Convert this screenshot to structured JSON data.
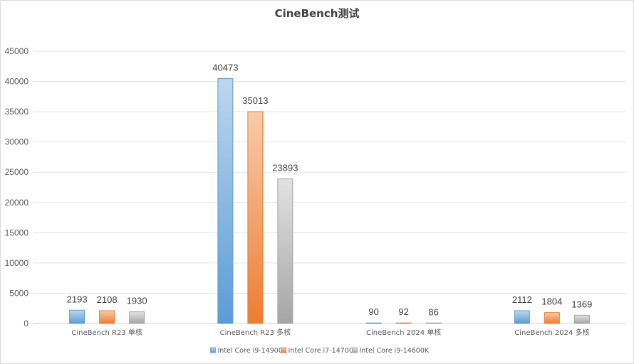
{
  "chart_data": {
    "type": "bar",
    "title": "CineBench测试",
    "xlabel": "",
    "ylabel": "",
    "categories": [
      "CineBench R23 单核",
      "CineBench R23 多核",
      "CineBench 2024 单核",
      "CineBench 2024 多核"
    ],
    "series": [
      {
        "name": "Intel Core i9-14900K",
        "color": "#5B9BD5",
        "values": [
          2193,
          40473,
          90,
          2112
        ]
      },
      {
        "name": "Intel Core i7-14700K",
        "color": "#ED7D31",
        "values": [
          2108,
          35013,
          92,
          1804
        ]
      },
      {
        "name": "Intel Core i9-14600K",
        "color": "#A5A5A5",
        "values": [
          1930,
          23893,
          86,
          1369
        ]
      }
    ],
    "ylim": [
      0,
      45000
    ],
    "yticks": [
      0,
      5000,
      10000,
      15000,
      20000,
      25000,
      30000,
      35000,
      40000,
      45000
    ],
    "grid": true,
    "legend_position": "bottom",
    "data_labels": true
  }
}
